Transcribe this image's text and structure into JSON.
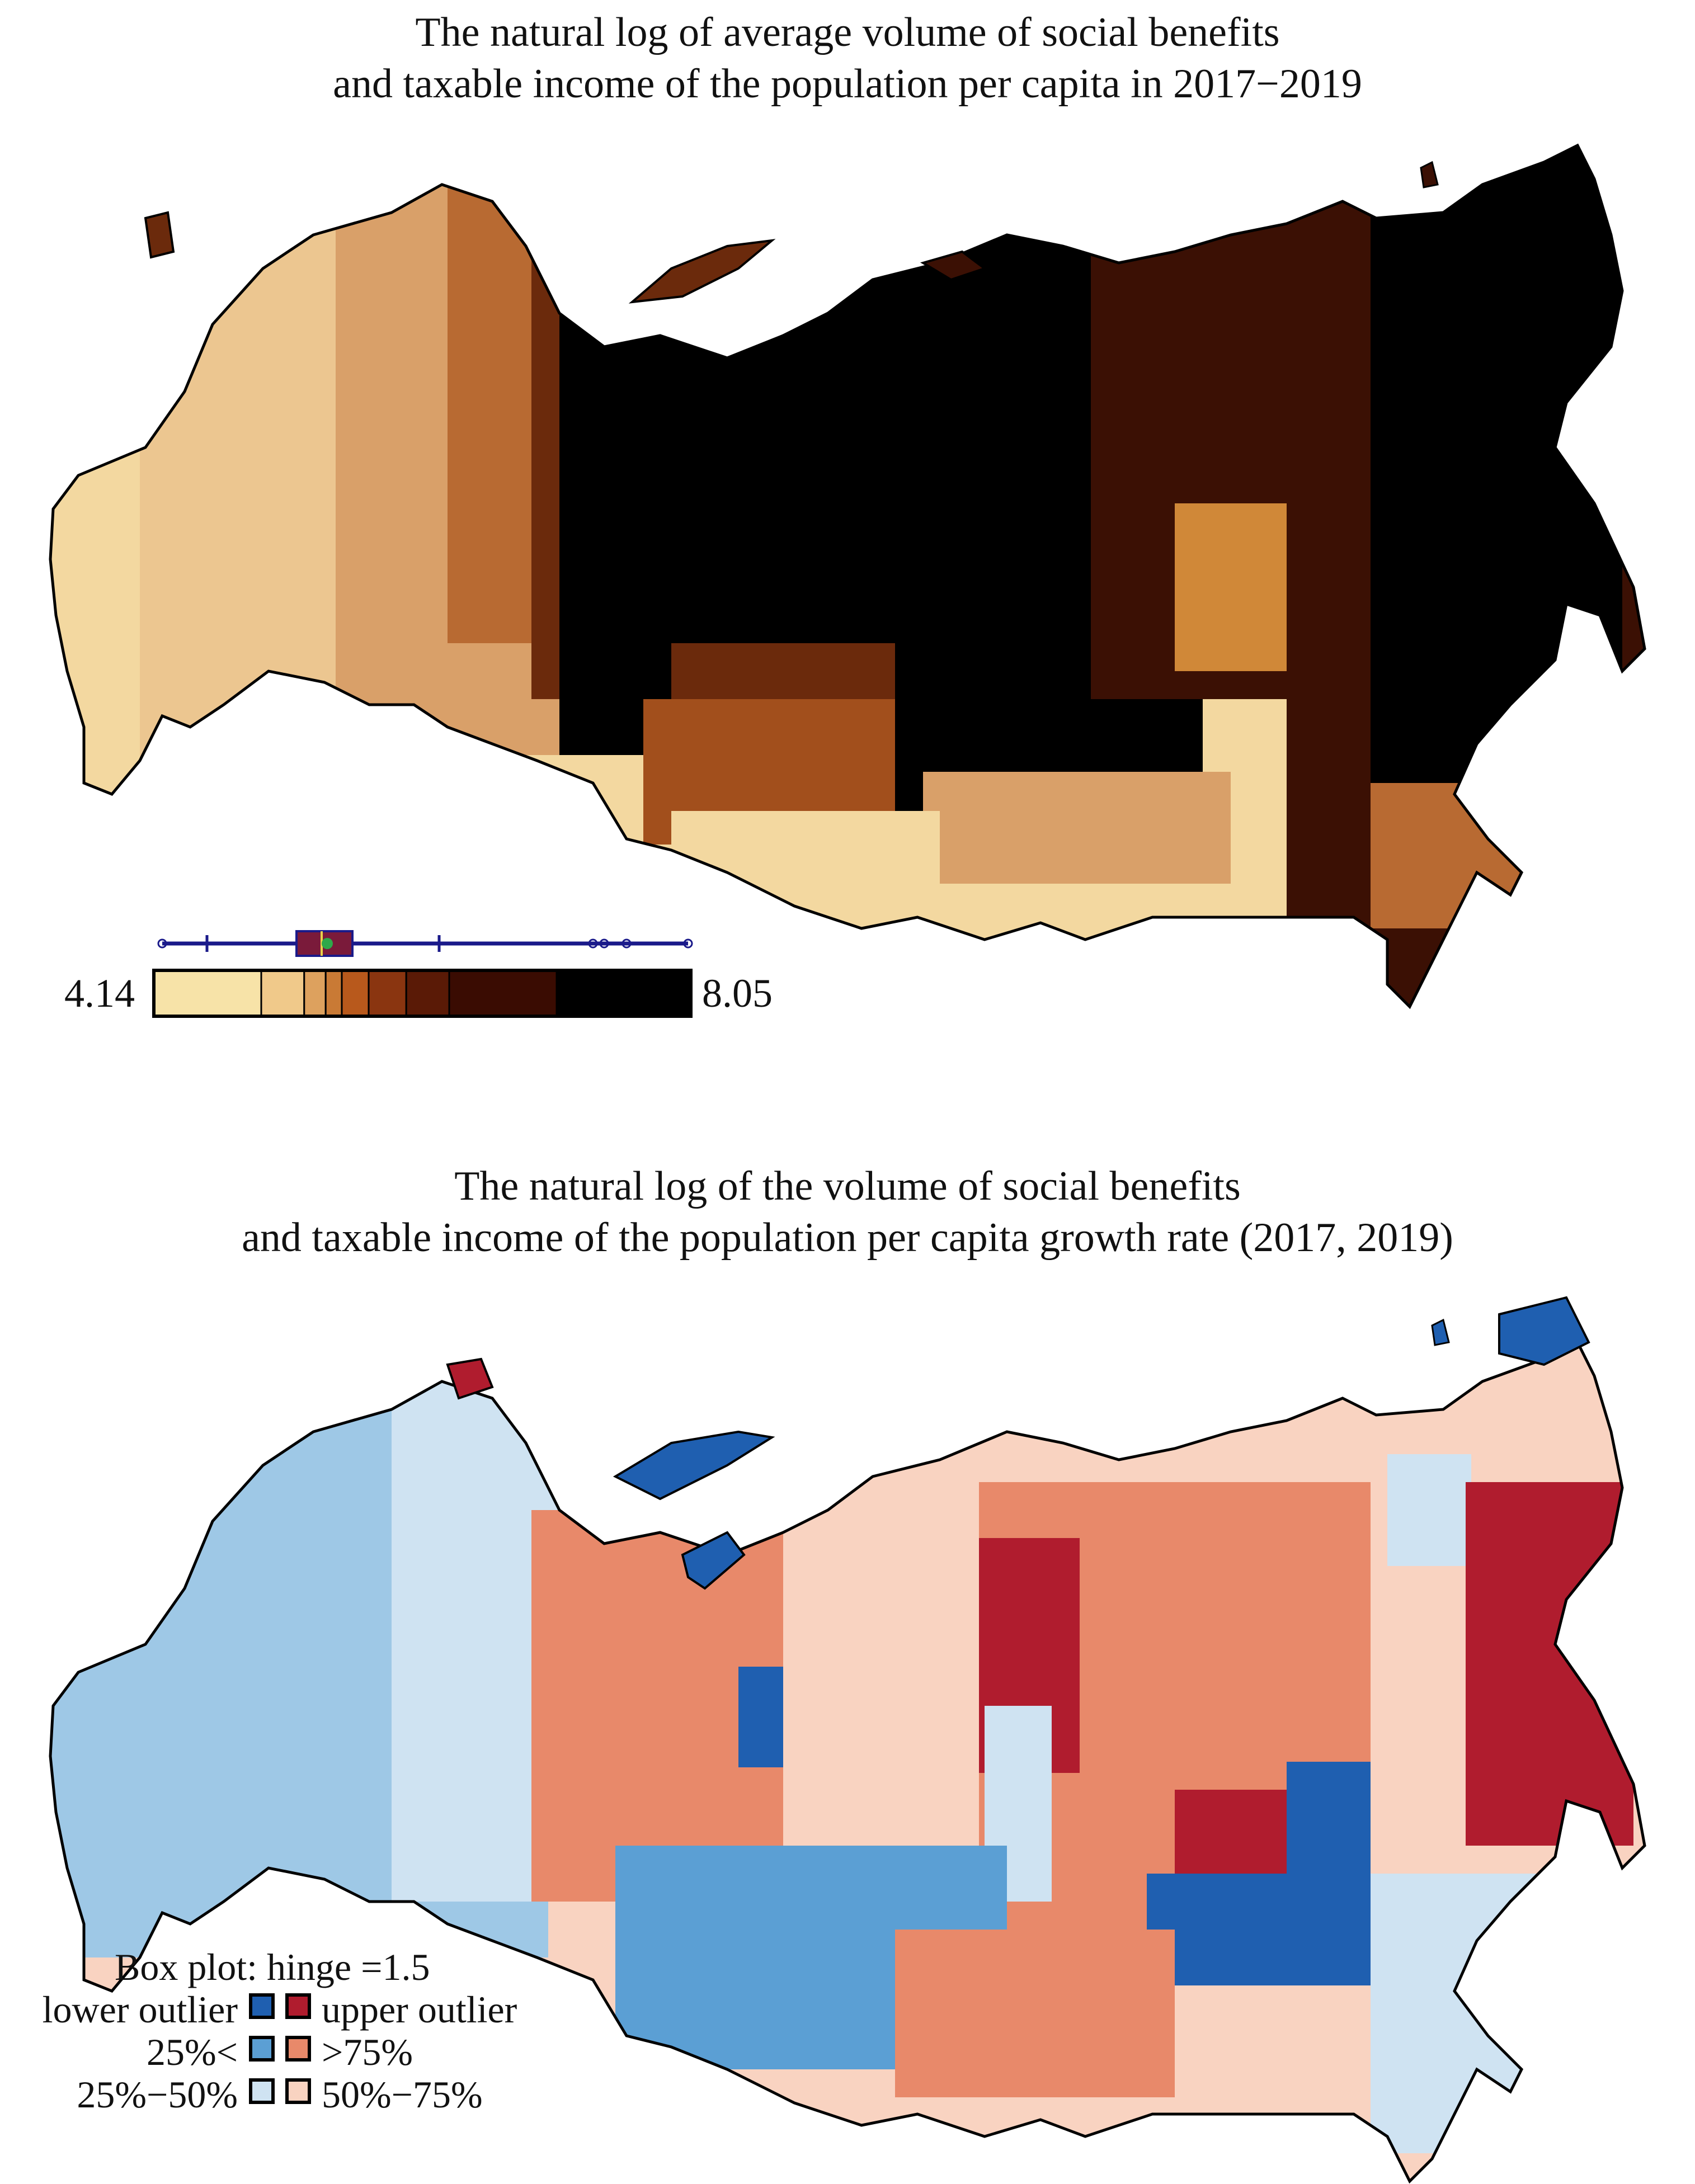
{
  "map1": {
    "title_line1": "The natural log of average volume of social benefits",
    "title_line2": "and taxable income of the population per capita in 2017−2019",
    "scale_min": "4.14",
    "scale_max": "8.05",
    "ramp_colors": [
      "#f7e3a8",
      "#f0c98a",
      "#dda15e",
      "#c97a35",
      "#b8591c",
      "#8a3510",
      "#5a1a06",
      "#3a0c02",
      "#000000"
    ]
  },
  "map2": {
    "title_line1": "The natural log of the volume of social benefits",
    "title_line2": "and taxable income of the population per capita growth rate (2017, 2019)",
    "legend": {
      "heading": "Box plot: hinge =1.5",
      "rows": [
        {
          "left": "lower outlier",
          "right": "upper outlier",
          "left_color": "#1f5fb0",
          "right_color": "#b01c2e"
        },
        {
          "left": "25%<",
          "right": ">75%",
          "left_color": "#5b9fd4",
          "right_color": "#e8896a"
        },
        {
          "left": "25%−50%",
          "right": "50%−75%",
          "left_color": "#cfe3f2",
          "right_color": "#f9d3c1"
        }
      ]
    }
  }
}
